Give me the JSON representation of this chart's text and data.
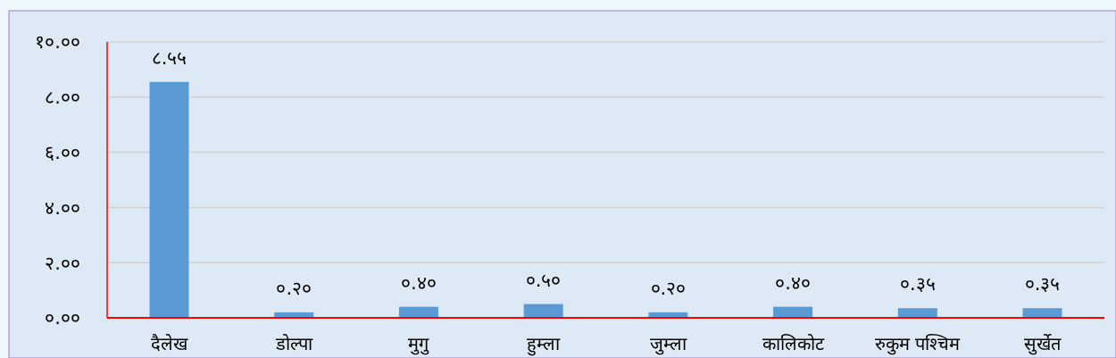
{
  "chart_data": {
    "type": "bar",
    "categories": [
      "दैलेख",
      "डोल्पा",
      "मुगु",
      "हुम्ला",
      "जुम्ला",
      "कालिकोट",
      "रुकुम पश्चिम",
      "सुर्खेत"
    ],
    "values": [
      8.55,
      0.2,
      0.4,
      0.5,
      0.2,
      0.4,
      0.35,
      0.35
    ],
    "value_labels": [
      "८.५५",
      "०.२०",
      "०.४०",
      "०.५०",
      "०.२०",
      "०.४०",
      "०.३५",
      "०.३५"
    ],
    "color": "#5b9bd5",
    "ylim": [
      0,
      10
    ],
    "yticks": [
      {
        "value": 0,
        "label": "०.००"
      },
      {
        "value": 2,
        "label": "२.००"
      },
      {
        "value": 4,
        "label": "४.००"
      },
      {
        "value": 6,
        "label": "६.००"
      },
      {
        "value": 8,
        "label": "८.००"
      },
      {
        "value": 10,
        "label": "१०.००"
      }
    ],
    "grid": "y"
  }
}
